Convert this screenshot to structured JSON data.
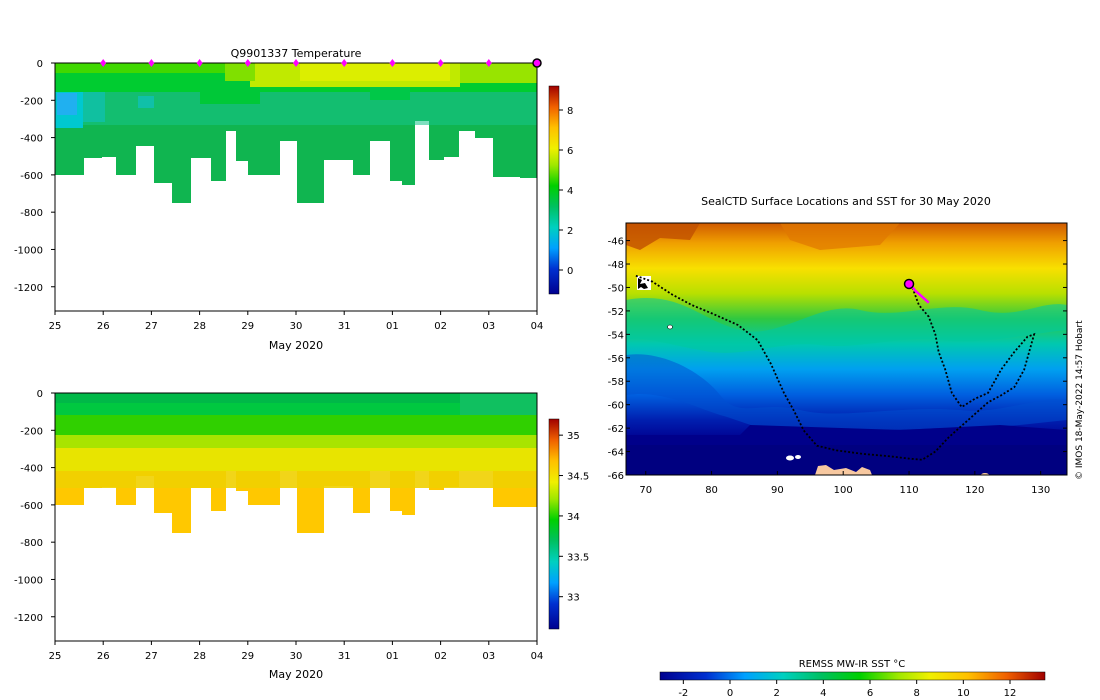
{
  "temperature_panel": {
    "title": "Q9901337  Temperature",
    "xlabel": "May 2020",
    "x_ticks": [
      "25",
      "26",
      "27",
      "28",
      "29",
      "30",
      "31",
      "01",
      "02",
      "03",
      "04"
    ],
    "y_ticks": [
      0,
      -200,
      -400,
      -600,
      -800,
      -1000,
      -1200
    ],
    "colorbar_ticks": [
      0,
      2,
      4,
      6,
      8
    ],
    "colorbar_range": [
      -1.2,
      9.2
    ]
  },
  "salinity_panel": {
    "xlabel": "May 2020",
    "x_ticks": [
      "25",
      "26",
      "27",
      "28",
      "29",
      "30",
      "31",
      "01",
      "02",
      "03",
      "04"
    ],
    "y_ticks": [
      0,
      -200,
      -400,
      -600,
      -800,
      -1000,
      -1200
    ],
    "colorbar_ticks": [
      "33",
      "33.5",
      "34",
      "34.5",
      "35"
    ],
    "colorbar_range": [
      32.6,
      35.2
    ]
  },
  "map_panel": {
    "title": "SealCTD Surface Locations and SST for 30 May 2020",
    "x_ticks": [
      70,
      80,
      90,
      100,
      110,
      120,
      130
    ],
    "y_ticks": [
      -46,
      -48,
      -50,
      -52,
      -54,
      -56,
      -58,
      -60,
      -62,
      -64,
      -66
    ],
    "credit": "© IMOS 18-May-2022 14:57 Hobart",
    "sst_label": "REMSS MW-IR SST °C",
    "sst_ticks": [
      -2,
      0,
      2,
      4,
      6,
      8,
      10,
      12
    ]
  },
  "chart_data": [
    {
      "type": "heatmap",
      "title": "Q9901337  Temperature",
      "xlabel": "May 2020",
      "ylabel": "",
      "xlim": [
        25,
        35
      ],
      "ylim": [
        -1330,
        0
      ],
      "units": "°C",
      "profile_days": [
        25,
        25.3,
        25.6,
        26,
        26.3,
        26.6,
        27,
        27.25,
        27.5,
        27.7,
        28,
        28.3,
        28.6,
        28.9,
        29.2,
        29.5,
        30,
        30.3,
        30.6,
        31,
        31.3,
        31.6,
        32,
        32.3,
        32.6,
        33,
        33.3,
        33.6,
        34.0,
        34.3
      ],
      "profile_max_depth": [
        -590,
        -510,
        -505,
        -585,
        -550,
        -445,
        -635,
        -555,
        -750,
        -420,
        -500,
        -625,
        -390,
        -530,
        -480,
        -575,
        -415,
        -750,
        -670,
        -490,
        -640,
        -480,
        -630,
        -655,
        -420,
        -520,
        -500,
        -360,
        -400,
        -610
      ],
      "layers": [
        {
          "top": 0,
          "bottom": -50,
          "temp": 5.8
        },
        {
          "top": -50,
          "bottom": -130,
          "temp": 4.5
        },
        {
          "top": -130,
          "bottom": -350,
          "temp": 3.3
        },
        {
          "top": -350,
          "bottom": -750,
          "temp": 2.9
        }
      ],
      "profile_markers_days": [
        26,
        27,
        28,
        29,
        30,
        31,
        32,
        33,
        34
      ],
      "current_marker_day": 35
    },
    {
      "type": "heatmap",
      "title": "",
      "xlabel": "May 2020",
      "ylabel": "",
      "xlim": [
        25,
        35
      ],
      "ylim": [
        -1330,
        0
      ],
      "units": "PSU",
      "layers": [
        {
          "top": 0,
          "bottom": -60,
          "sal": 33.7
        },
        {
          "top": -60,
          "bottom": -200,
          "sal": 33.85
        },
        {
          "top": -200,
          "bottom": -300,
          "sal": 34.1
        },
        {
          "top": -300,
          "bottom": -400,
          "sal": 34.3
        },
        {
          "top": -400,
          "bottom": -750,
          "sal": 34.6
        }
      ]
    },
    {
      "type": "scatter",
      "title": "SealCTD Surface Locations and SST for 30 May 2020",
      "xlabel": "",
      "ylabel": "",
      "xlim": [
        67,
        134
      ],
      "ylim": [
        -66,
        -44.5
      ],
      "track": [
        [
          68.5,
          -49
        ],
        [
          71,
          -49.5
        ],
        [
          74,
          -50.6
        ],
        [
          77,
          -51.5
        ],
        [
          80,
          -52.2
        ],
        [
          84,
          -53.2
        ],
        [
          87,
          -54.5
        ],
        [
          89,
          -56.5
        ],
        [
          91,
          -59
        ],
        [
          92.5,
          -60.5
        ],
        [
          94,
          -62.2
        ],
        [
          96,
          -63.5
        ],
        [
          99,
          -63.9
        ],
        [
          103,
          -64.2
        ],
        [
          107,
          -64.4
        ],
        [
          110,
          -64.6
        ],
        [
          112,
          -64.7
        ],
        [
          114,
          -64
        ],
        [
          116,
          -62.8
        ],
        [
          118,
          -61.8
        ],
        [
          120,
          -60.8
        ],
        [
          122,
          -59.8
        ],
        [
          124,
          -59.2
        ],
        [
          126,
          -58.5
        ],
        [
          127.5,
          -57
        ],
        [
          128.5,
          -55
        ],
        [
          129,
          -54
        ],
        [
          128,
          -54.2
        ],
        [
          126,
          -55.5
        ],
        [
          124,
          -57
        ],
        [
          122,
          -59
        ],
        [
          120,
          -59.5
        ],
        [
          118,
          -60.2
        ],
        [
          116.5,
          -59
        ],
        [
          115.5,
          -57
        ],
        [
          114.5,
          -55.5
        ],
        [
          114,
          -54
        ],
        [
          113,
          -52.5
        ],
        [
          111.5,
          -51.5
        ],
        [
          110.5,
          -50
        ]
      ],
      "recent_track": [
        [
          110,
          -49.6
        ],
        [
          111,
          -50.3
        ],
        [
          112,
          -50.8
        ],
        [
          113,
          -51.3
        ]
      ],
      "current_position": [
        110,
        -49.7
      ],
      "sst_colorbar": {
        "label": "REMSS MW-IR SST °C",
        "ticks": [
          -2,
          0,
          2,
          4,
          6,
          8,
          10,
          12
        ],
        "range": [
          -3,
          13.5
        ]
      }
    }
  ],
  "colors": {
    "marker": "#ff00ff",
    "track": "#000000",
    "land": "#f7c8a0"
  }
}
